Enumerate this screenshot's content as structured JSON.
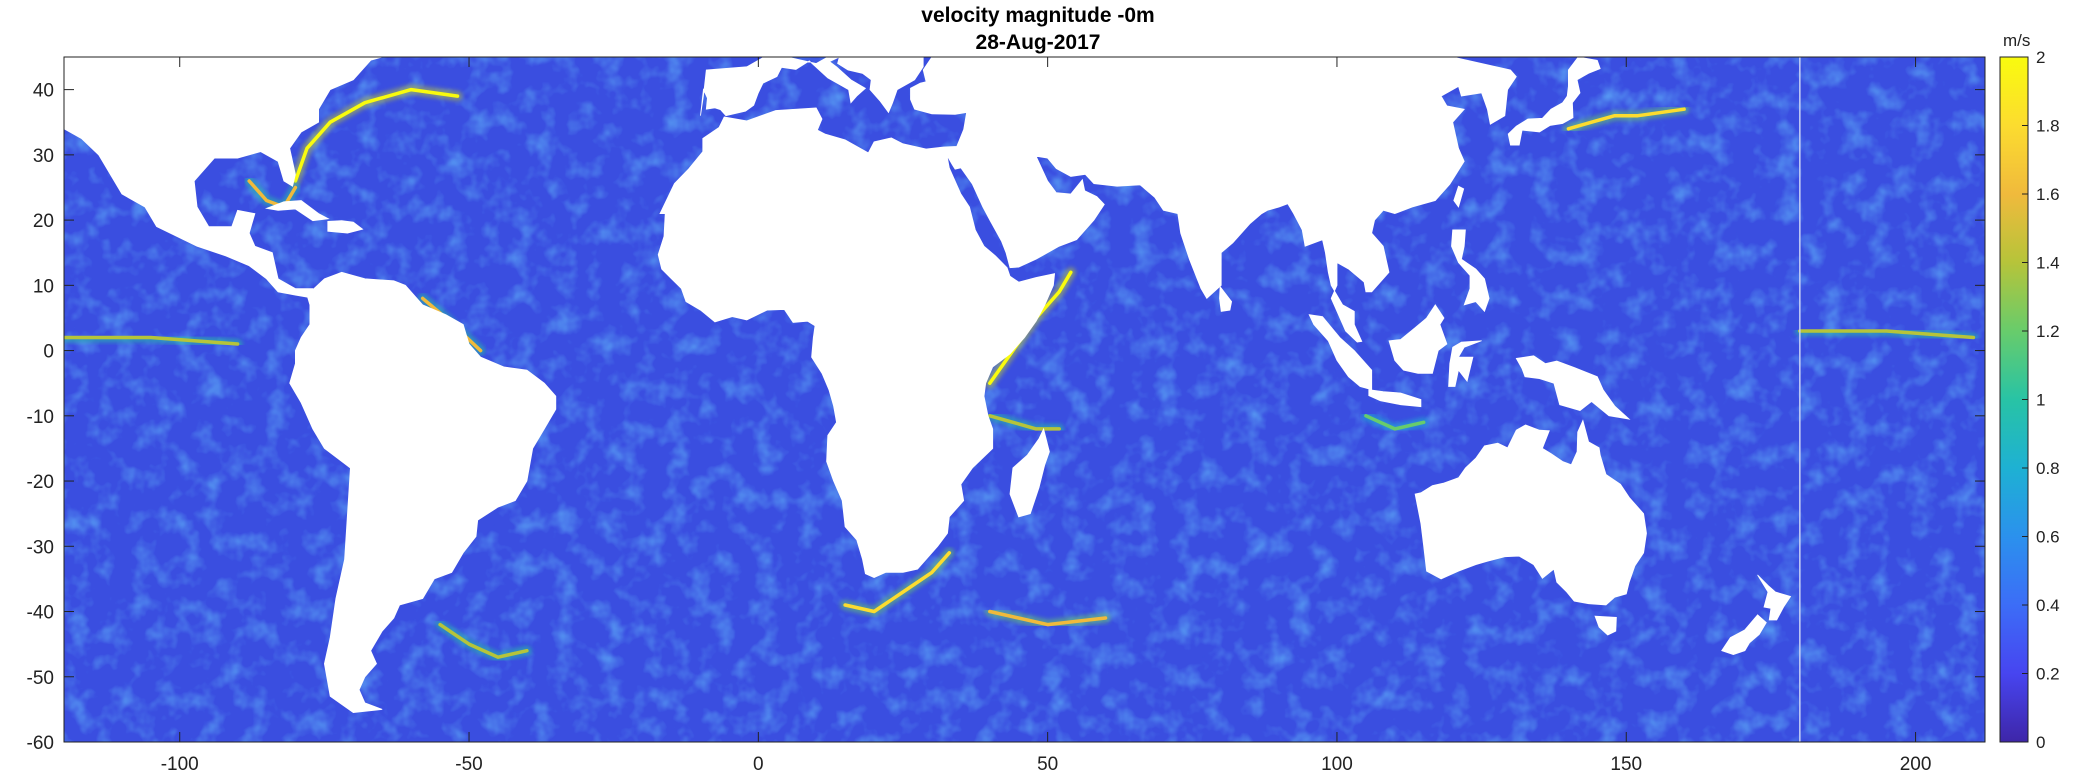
{
  "title": {
    "line1": "velocity magnitude -0m",
    "line2": "28-Aug-2017"
  },
  "map": {
    "xlim": [
      -120,
      212
    ],
    "ylim": [
      -60,
      45
    ],
    "xticks": [
      -100,
      -50,
      0,
      50,
      100,
      150,
      200
    ],
    "yticks": [
      -60,
      -50,
      -40,
      -30,
      -20,
      -10,
      0,
      10,
      20,
      30,
      40
    ],
    "seam_longitude": 180,
    "ocean_color": "#3a4ee0",
    "land_color": "#ffffff",
    "strong_currents": [
      {
        "lon": [
          -80,
          -78,
          -74,
          -68,
          -60,
          -52
        ],
        "lat": [
          26,
          31,
          35,
          38,
          40,
          39
        ],
        "speed": 1.9
      },
      {
        "lon": [
          -88,
          -85,
          -82,
          -80
        ],
        "lat": [
          26,
          23,
          22,
          25
        ],
        "speed": 1.5
      },
      {
        "lon": [
          40,
          44,
          48,
          52,
          54
        ],
        "lat": [
          -5,
          0,
          5,
          9,
          12
        ],
        "speed": 1.9
      },
      {
        "lon": [
          40,
          44,
          48,
          52
        ],
        "lat": [
          -10,
          -11,
          -12,
          -12
        ],
        "speed": 1.4
      },
      {
        "lon": [
          15,
          20,
          25,
          30,
          33
        ],
        "lat": [
          -39,
          -40,
          -37,
          -34,
          -31
        ],
        "speed": 1.7
      },
      {
        "lon": [
          40,
          50,
          60
        ],
        "lat": [
          -40,
          -42,
          -41
        ],
        "speed": 1.6
      },
      {
        "lon": [
          140,
          144,
          148,
          152,
          160
        ],
        "lat": [
          34,
          35,
          36,
          36,
          37
        ],
        "speed": 1.8
      },
      {
        "lon": [
          -120,
          -105,
          -90
        ],
        "lat": [
          2,
          2,
          1
        ],
        "speed": 1.3
      },
      {
        "lon": [
          180,
          195,
          210
        ],
        "lat": [
          3,
          3,
          2
        ],
        "speed": 1.3
      },
      {
        "lon": [
          -58,
          -54,
          -48
        ],
        "lat": [
          8,
          5,
          0
        ],
        "speed": 1.5
      },
      {
        "lon": [
          -55,
          -50,
          -45,
          -40
        ],
        "lat": [
          -42,
          -45,
          -47,
          -46
        ],
        "speed": 1.3
      },
      {
        "lon": [
          105,
          110,
          115
        ],
        "lat": [
          -10,
          -12,
          -11
        ],
        "speed": 1.2
      }
    ]
  },
  "colorbar": {
    "unit": "m/s",
    "range": [
      0,
      2
    ],
    "ticks": [
      "0",
      "0.2",
      "0.4",
      "0.6",
      "0.8",
      "1",
      "1.2",
      "1.4",
      "1.6",
      "1.8",
      "2"
    ],
    "colormap": [
      "#3e26a8",
      "#4745f0",
      "#3c6df7",
      "#2b91ed",
      "#1eb1d3",
      "#28c3a5",
      "#68cc6b",
      "#b6c43a",
      "#f0ba3c",
      "#fcdc2f",
      "#f9fb0e"
    ]
  }
}
